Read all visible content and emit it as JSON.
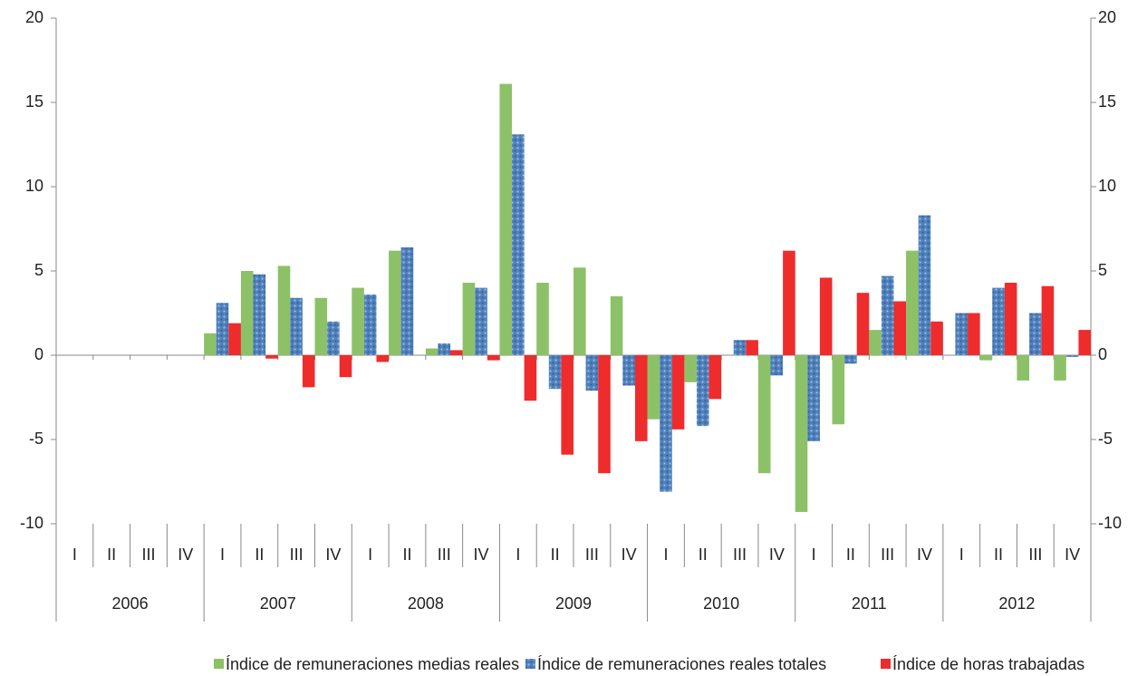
{
  "chart_data": {
    "type": "bar",
    "categories": [
      "I",
      "II",
      "III",
      "IV",
      "I",
      "II",
      "III",
      "IV",
      "I",
      "II",
      "III",
      "IV",
      "I",
      "II",
      "III",
      "IV",
      "I",
      "II",
      "III",
      "IV",
      "I",
      "II",
      "III",
      "IV",
      "I",
      "II",
      "III",
      "IV"
    ],
    "groups": [
      "2006",
      "2007",
      "2008",
      "2009",
      "2010",
      "2011",
      "2012"
    ],
    "series": [
      {
        "name": "Índice de remuneraciones medias reales",
        "color": "#8cc168",
        "values": [
          null,
          null,
          null,
          null,
          1.3,
          5.0,
          5.3,
          3.4,
          4.0,
          6.2,
          0.4,
          4.3,
          16.1,
          4.3,
          5.2,
          3.5,
          -3.8,
          -1.6,
          0,
          -7.0,
          -9.3,
          -4.1,
          1.5,
          6.2,
          0,
          -0.3,
          -1.5,
          -1.5
        ]
      },
      {
        "name": "Índice de remuneraciones reales totales",
        "color": "#4f81bd",
        "values": [
          null,
          null,
          null,
          null,
          3.1,
          4.8,
          3.4,
          2.0,
          3.6,
          6.4,
          0.7,
          4.0,
          13.1,
          -2.0,
          -2.1,
          -1.8,
          -8.1,
          -4.2,
          0.9,
          -1.2,
          -5.1,
          -0.5,
          4.7,
          8.3,
          2.5,
          4.0,
          2.5,
          -0.1
        ]
      },
      {
        "name": "Índice de horas trabajadas",
        "color": "#ee2c2c",
        "values": [
          null,
          null,
          null,
          null,
          1.9,
          -0.2,
          -1.9,
          -1.3,
          -0.4,
          0,
          0.3,
          -0.3,
          -2.7,
          -5.9,
          -7.0,
          -5.1,
          -4.4,
          -2.6,
          0.9,
          6.2,
          4.6,
          3.7,
          3.2,
          2.0,
          2.5,
          4.3,
          4.1,
          1.5
        ]
      }
    ],
    "ylim": [
      -10,
      20
    ],
    "yticks": [
      -10,
      -5,
      0,
      5,
      10,
      15,
      20
    ],
    "y2lim": [
      -10,
      20
    ],
    "y2ticks": [
      -10,
      -5,
      0,
      5,
      10,
      15,
      20
    ],
    "legend": "bottom"
  }
}
